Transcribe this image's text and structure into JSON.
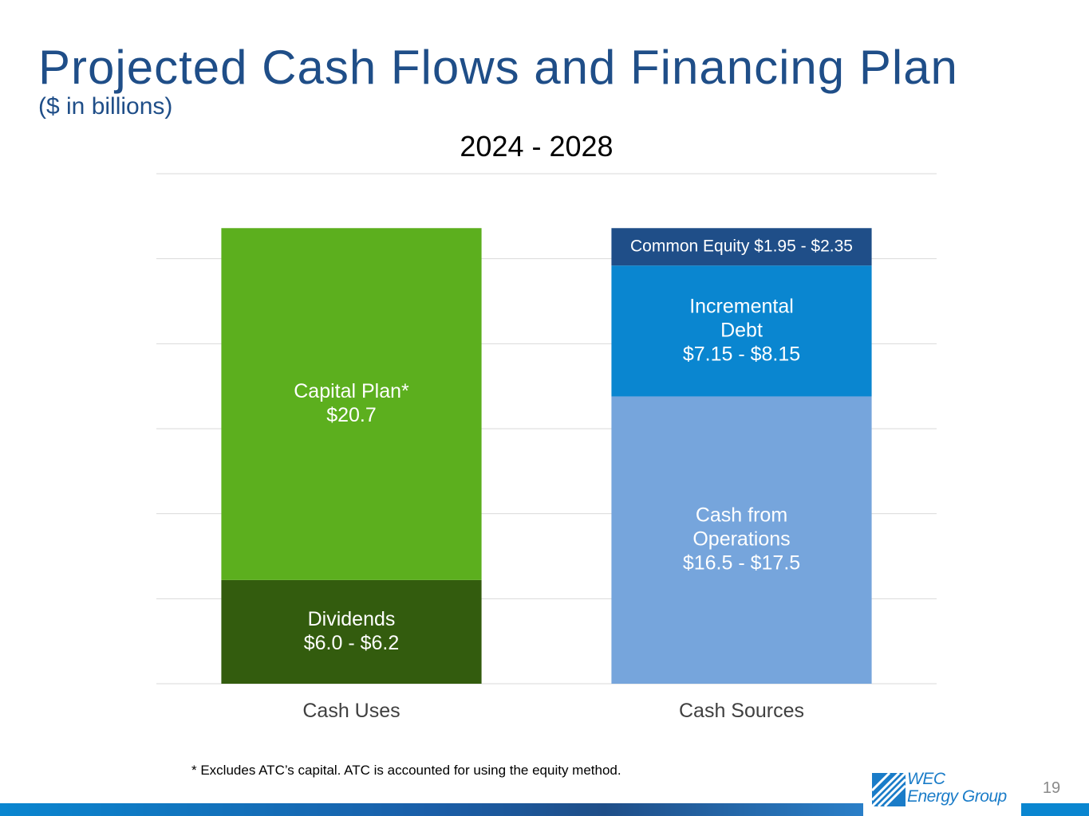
{
  "slide": {
    "title": "Projected Cash Flows and Financing Plan",
    "subtitle": "($ in billions)",
    "footnote": "* Excludes ATC’s capital. ATC is accounted for using the equity method.",
    "page_number": "19",
    "logo": {
      "line1": "WEC",
      "line2": "Energy Group",
      "icon": "wec-logo-icon"
    }
  },
  "chart_data": {
    "type": "bar",
    "stacked": true,
    "title": "2024 - 2028",
    "categories": [
      "Cash Uses",
      "Cash Sources"
    ],
    "ylim": [
      0,
      30
    ],
    "grid": true,
    "y_axis_labels_shown": false,
    "stacks": [
      {
        "category": "Cash Uses",
        "segments": [
          {
            "label_lines": [
              "Dividends",
              "$6.0 - $6.2"
            ],
            "value": 6.1,
            "color": "#335c0e"
          },
          {
            "label_lines": [
              "Capital Plan*",
              "$20.7"
            ],
            "value": 20.7,
            "color": "#5caf1e"
          }
        ]
      },
      {
        "category": "Cash Sources",
        "segments": [
          {
            "label_lines": [
              "Cash from",
              "Operations",
              "$16.5 - $17.5"
            ],
            "value": 16.9,
            "color": "#76a5dc"
          },
          {
            "label_lines": [
              "Incremental",
              "Debt",
              "$7.15 - $8.15"
            ],
            "value": 7.7,
            "color": "#0a86d0"
          },
          {
            "label_lines": [
              "Common Equity $1.95 - $2.35"
            ],
            "value": 2.2,
            "color": "#1f4e88"
          }
        ]
      }
    ]
  }
}
